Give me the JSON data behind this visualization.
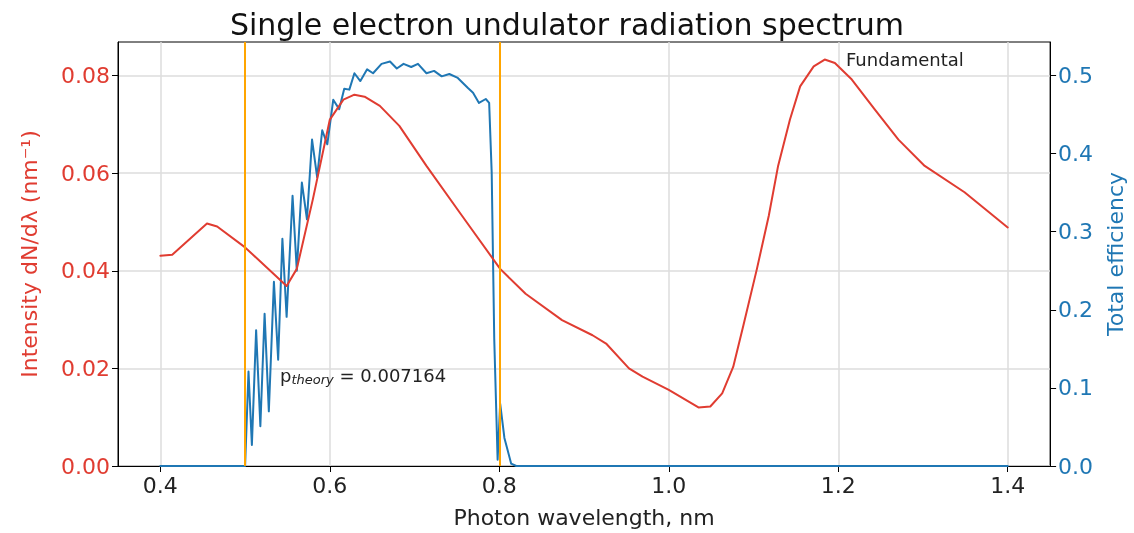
{
  "chart_data": {
    "type": "line",
    "title": "Single electron undulator radiation spectrum",
    "xlabel": "Photon wavelength, nm",
    "ylabel": "Intensity dN/dλ (nm⁻¹)",
    "y2label": "Total efficiency",
    "xlim": [
      0.35,
      1.45
    ],
    "xticks": [
      0.4,
      0.6,
      0.8,
      {
        "value": 1.0,
        "label": "1.0"
      },
      1.2,
      1.4
    ],
    "ylim": [
      0,
      0.0869
    ],
    "yticks": [
      {
        "value": 0,
        "label": "0.00"
      },
      {
        "value": 0.02,
        "label": "0.02"
      },
      {
        "value": 0.04,
        "label": "0.04"
      },
      {
        "value": 0.06,
        "label": "0.06"
      },
      {
        "value": 0.08,
        "label": "0.08"
      }
    ],
    "y2lim": [
      0,
      0.543
    ],
    "y2ticks": [
      {
        "value": 0,
        "label": "0.0"
      },
      0.1,
      0.2,
      0.3,
      0.4,
      0.5
    ],
    "grid": true,
    "marker": "none",
    "line_style": "solid",
    "annotations": [
      "p$_{theory}$ = 0.007164",
      "Fundamental"
    ],
    "ref_lines": [
      {
        "axis": "x",
        "value": 0.5,
        "color": "#ffa500"
      },
      {
        "axis": "x",
        "value": 0.8,
        "color": "#ffa500"
      }
    ],
    "series": [
      {
        "color": "#e03c31",
        "x": [
          0.4,
          0.414,
          0.455,
          0.467,
          0.5,
          0.549,
          0.561,
          0.58,
          0.6,
          0.616,
          0.629,
          0.641,
          0.659,
          0.682,
          0.714,
          0.753,
          0.801,
          0.831,
          0.874,
          0.91,
          0.926,
          0.953,
          0.969,
          1.0,
          1.035,
          1.049,
          1.063,
          1.076,
          1.088,
          1.104,
          1.118,
          1.129,
          1.143,
          1.155,
          1.171,
          1.184,
          1.196,
          1.216,
          1.243,
          1.271,
          1.302,
          1.349,
          1.4
        ],
        "values": [
          0.0431,
          0.0433,
          0.0497,
          0.0491,
          0.0448,
          0.0369,
          0.0404,
          0.0547,
          0.071,
          0.0751,
          0.0761,
          0.0757,
          0.0738,
          0.0697,
          0.0615,
          0.052,
          0.0404,
          0.0353,
          0.0299,
          0.0268,
          0.0251,
          0.02,
          0.0183,
          0.0156,
          0.012,
          0.0122,
          0.0149,
          0.0203,
          0.0288,
          0.0404,
          0.0513,
          0.0615,
          0.071,
          0.0778,
          0.0819,
          0.0833,
          0.0826,
          0.0792,
          0.0731,
          0.0669,
          0.0615,
          0.0561,
          0.0489
        ]
      },
      {
        "color": "#1f77b4",
        "axis": "y2",
        "x": [
          0.4,
          0.5,
          0.504,
          0.508,
          0.513,
          0.518,
          0.523,
          0.528,
          0.534,
          0.539,
          0.544,
          0.549,
          0.556,
          0.561,
          0.567,
          0.573,
          0.579,
          0.585,
          0.591,
          0.597,
          0.604,
          0.611,
          0.617,
          0.623,
          0.629,
          0.636,
          0.644,
          0.651,
          0.661,
          0.671,
          0.679,
          0.687,
          0.696,
          0.704,
          0.714,
          0.723,
          0.732,
          0.741,
          0.751,
          0.763,
          0.769,
          0.776,
          0.784,
          0.788,
          0.791,
          0.794,
          0.798,
          0.801,
          0.806,
          0.814,
          0.82,
          1.4
        ],
        "values": [
          0,
          0,
          0.121,
          0.027,
          0.174,
          0.051,
          0.195,
          0.07,
          0.236,
          0.136,
          0.291,
          0.191,
          0.346,
          0.25,
          0.363,
          0.316,
          0.418,
          0.37,
          0.43,
          0.412,
          0.469,
          0.457,
          0.483,
          0.482,
          0.503,
          0.493,
          0.508,
          0.503,
          0.515,
          0.518,
          0.509,
          0.515,
          0.511,
          0.515,
          0.503,
          0.506,
          0.499,
          0.502,
          0.497,
          0.484,
          0.478,
          0.465,
          0.47,
          0.465,
          0.376,
          0.163,
          0.008,
          0.08,
          0.036,
          0.003,
          0,
          0
        ]
      }
    ]
  }
}
